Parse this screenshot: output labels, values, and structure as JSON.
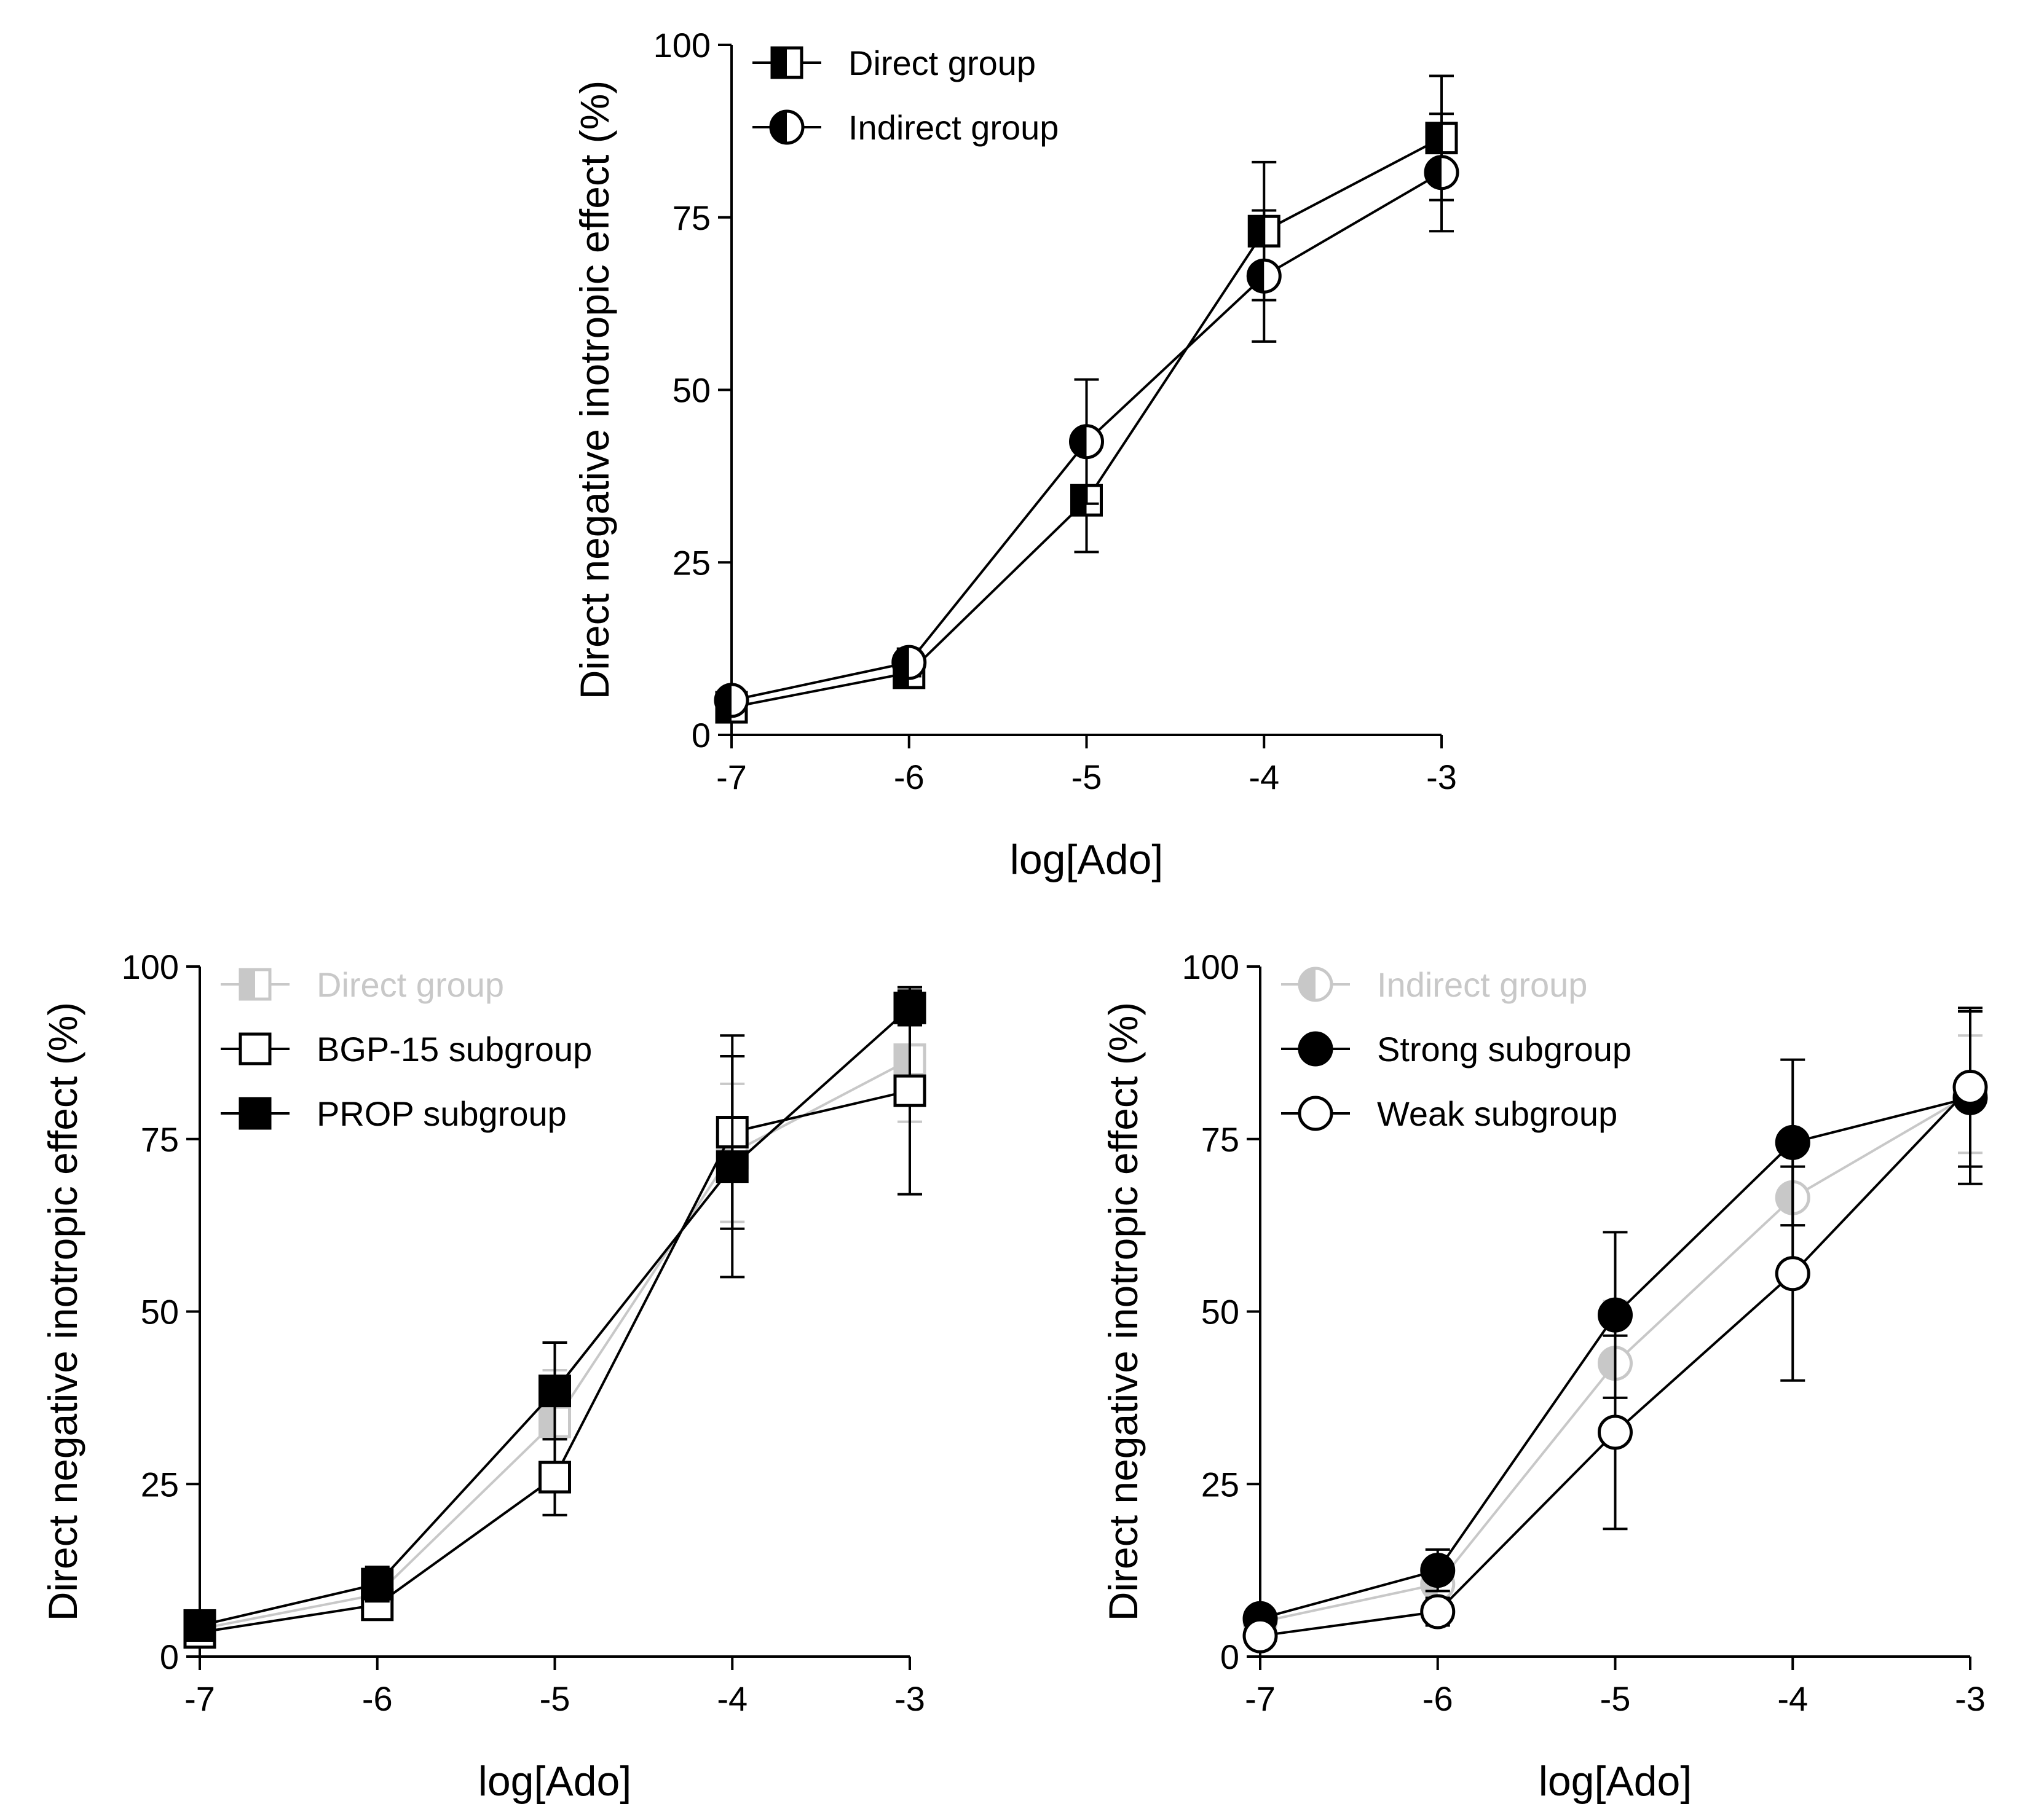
{
  "chart_data": [
    {
      "type": "line",
      "title": "",
      "xlabel": "log[Ado]",
      "ylabel": "Direct negative inotropic effect (%)",
      "xlim": [
        -7,
        -3
      ],
      "ylim": [
        0,
        100
      ],
      "xticks": [
        "-7",
        "-6",
        "-5",
        "-4",
        "-3"
      ],
      "yticks": [
        "0",
        "25",
        "50",
        "75",
        "100"
      ],
      "legend_position": "top-left",
      "series": [
        {
          "name": "Direct group",
          "marker": "square-half",
          "color": "#000000",
          "x": [
            -7,
            -6,
            -5,
            -4,
            -3
          ],
          "y": [
            4,
            9,
            34,
            73,
            86.5
          ],
          "err": [
            2,
            1.5,
            7.5,
            10,
            9
          ]
        },
        {
          "name": "Indirect group",
          "marker": "circle-half",
          "color": "#000000",
          "x": [
            -7,
            -6,
            -5,
            -4,
            -3
          ],
          "y": [
            5,
            10.5,
            42.5,
            66.5,
            81.5
          ],
          "err": [
            1.5,
            2,
            9,
            9.5,
            8.5
          ]
        }
      ]
    },
    {
      "type": "line",
      "title": "",
      "xlabel": "log[Ado]",
      "ylabel": "Direct negative inotropic effect (%)",
      "xlim": [
        -7,
        -3
      ],
      "ylim": [
        0,
        100
      ],
      "xticks": [
        "-7",
        "-6",
        "-5",
        "-4",
        "-3"
      ],
      "yticks": [
        "0",
        "25",
        "50",
        "75",
        "100"
      ],
      "legend_position": "top-left",
      "series": [
        {
          "name": "Direct group",
          "marker": "square-half",
          "color": "#c8c8c8",
          "x": [
            -7,
            -6,
            -5,
            -4,
            -3
          ],
          "y": [
            4,
            9,
            34,
            73,
            86.5
          ],
          "err": [
            2,
            1.5,
            7.5,
            10,
            9
          ]
        },
        {
          "name": "BGP-15 subgroup",
          "marker": "square-open",
          "color": "#000000",
          "x": [
            -7,
            -6,
            -5,
            -4,
            -3
          ],
          "y": [
            3.5,
            7.5,
            26,
            76,
            82
          ],
          "err": [
            1.5,
            1,
            5.5,
            14,
            15
          ]
        },
        {
          "name": "PROP subgroup",
          "marker": "square-filled",
          "color": "#000000",
          "x": [
            -7,
            -6,
            -5,
            -4,
            -3
          ],
          "y": [
            4.5,
            10.5,
            38.5,
            71,
            94
          ],
          "err": [
            2,
            2.5,
            7,
            16,
            2.5
          ]
        }
      ]
    },
    {
      "type": "line",
      "title": "",
      "xlabel": "log[Ado]",
      "ylabel": "Direct negative inotropic effect (%)",
      "xlim": [
        -7,
        -3
      ],
      "ylim": [
        0,
        100
      ],
      "xticks": [
        "-7",
        "-6",
        "-5",
        "-4",
        "-3"
      ],
      "yticks": [
        "0",
        "25",
        "50",
        "75",
        "100"
      ],
      "legend_position": "top-left",
      "series": [
        {
          "name": "Indirect group",
          "marker": "circle-half",
          "color": "#c8c8c8",
          "x": [
            -7,
            -6,
            -5,
            -4,
            -3
          ],
          "y": [
            5,
            10.5,
            42.5,
            66.5,
            81.5
          ],
          "err": [
            1.5,
            2,
            9,
            9.5,
            8.5
          ]
        },
        {
          "name": "Strong subgroup",
          "marker": "circle-filled",
          "color": "#000000",
          "x": [
            -7,
            -6,
            -5,
            -4,
            -3
          ],
          "y": [
            5.5,
            12.5,
            49.5,
            74.5,
            81
          ],
          "err": [
            1.5,
            3,
            12,
            12,
            12.5
          ]
        },
        {
          "name": "Weak subgroup",
          "marker": "circle-open",
          "color": "#000000",
          "x": [
            -7,
            -6,
            -5,
            -4,
            -3
          ],
          "y": [
            3,
            6.5,
            32.5,
            55.5,
            82.5
          ],
          "err": [
            1.5,
            2,
            14,
            15.5,
            11.5
          ]
        }
      ]
    }
  ]
}
